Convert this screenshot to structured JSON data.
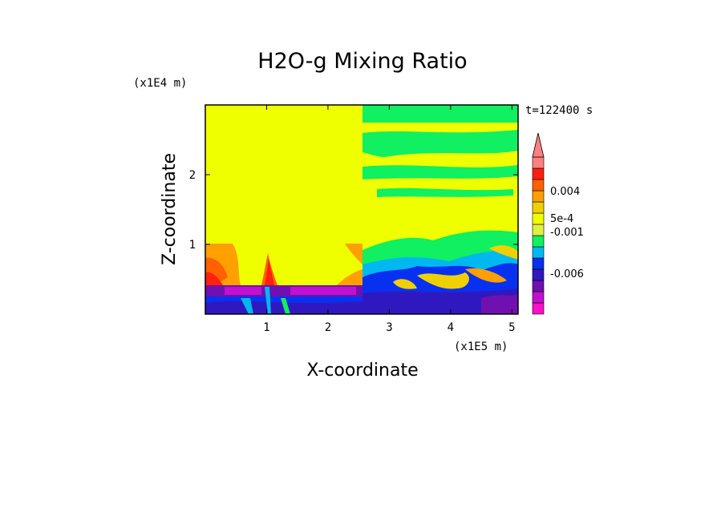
{
  "chart_data": {
    "type": "heatmap",
    "title": "H2O-g Mixing Ratio",
    "xlabel": "X-coordinate",
    "ylabel": "Z-coordinate",
    "x_scale_label": "(x1E5 m)",
    "y_scale_label": "(x1E4 m)",
    "time_label": "t=122400 s",
    "xlim": [
      0,
      5.1
    ],
    "ylim": [
      0,
      3
    ],
    "x_ticks": [
      1,
      2,
      3,
      4,
      5
    ],
    "y_ticks": [
      1,
      2
    ],
    "colorbar": {
      "labels": [
        {
          "text": "0.004",
          "value": 0.004
        },
        {
          "text": "5e-4",
          "value": 0.0005
        },
        {
          "text": "-0.001",
          "value": -0.001
        },
        {
          "text": "-0.006",
          "value": -0.006
        }
      ],
      "colors": [
        "#ff10c8",
        "#c010d0",
        "#7010b0",
        "#3018c0",
        "#0830f0",
        "#00b8f0",
        "#10f060",
        "#e0f040",
        "#f0ff00",
        "#f0d000",
        "#ffa000",
        "#ff6000",
        "#ff2010",
        "#ff8080"
      ]
    }
  }
}
